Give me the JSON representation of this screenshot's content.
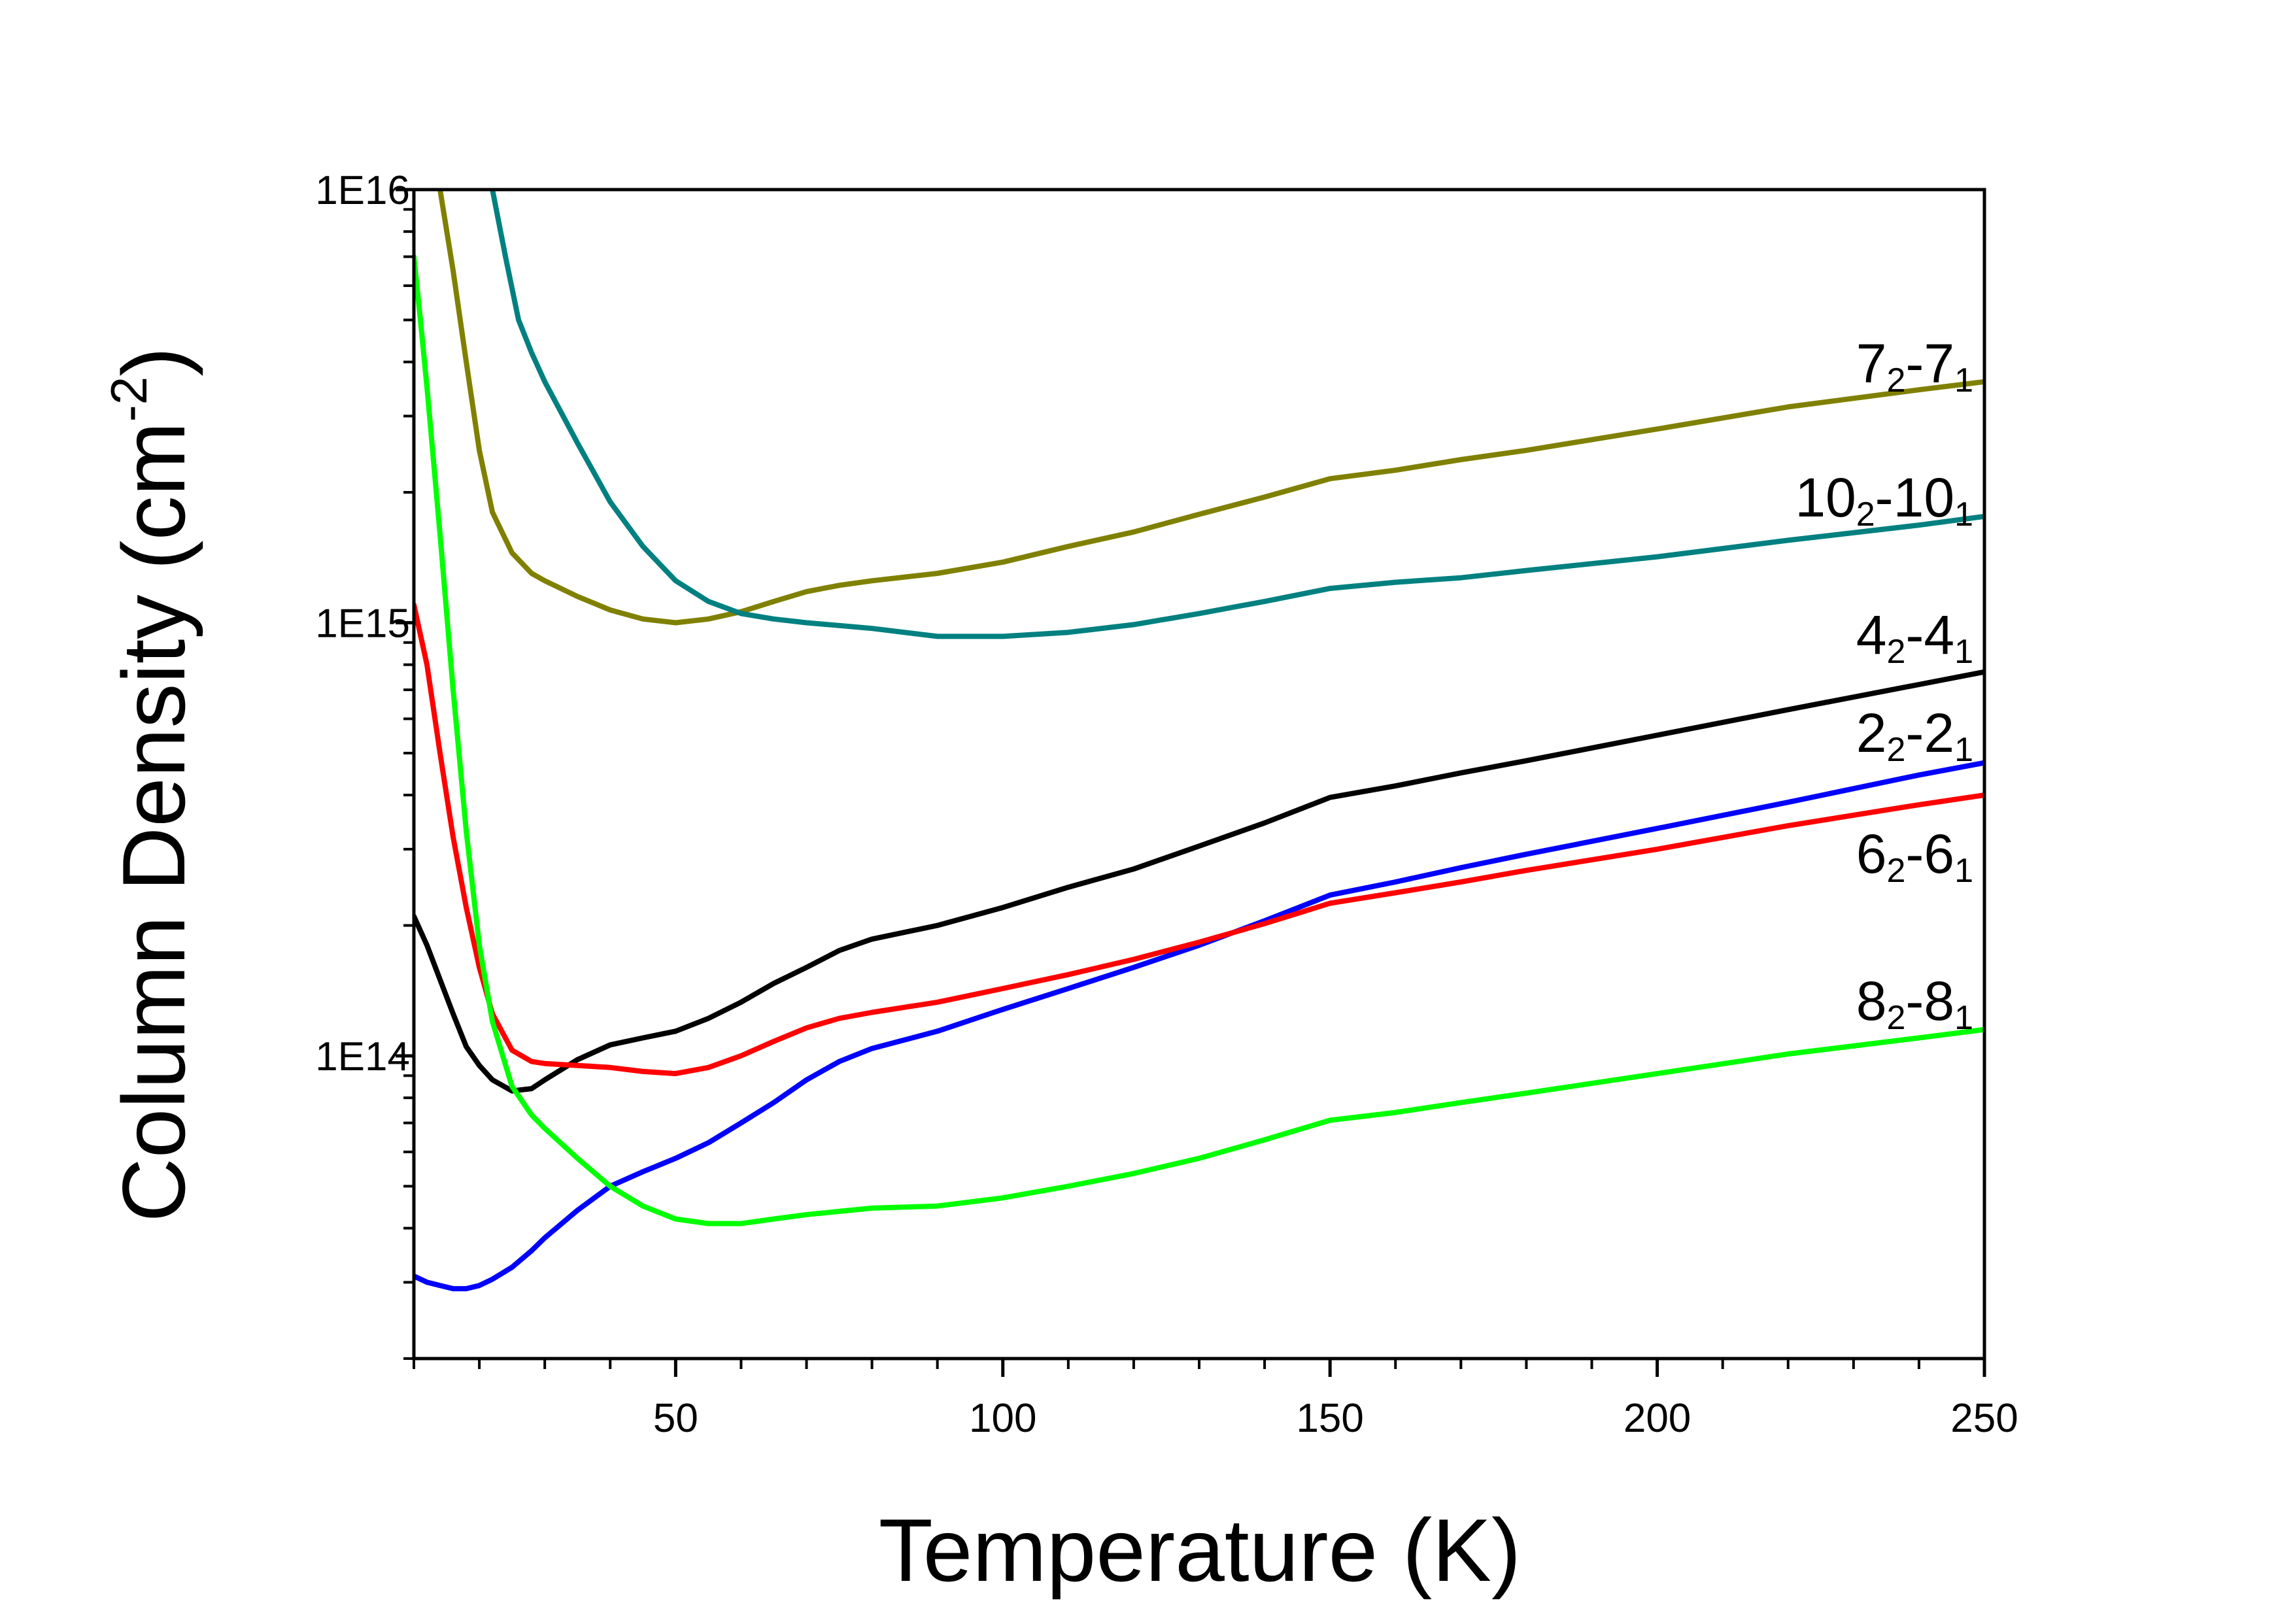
{
  "chart_data": {
    "type": "line",
    "title": "",
    "xlabel": "Temperature (K)",
    "ylabel": "Column Density (cm",
    "ylabel_sup": "-2",
    "ylabel_end": ")",
    "xlim": [
      10,
      250
    ],
    "ylim": [
      20000000000000.0,
      1e+16
    ],
    "yscale": "log",
    "x_ticks": [
      50,
      100,
      150,
      200,
      250
    ],
    "x_tick_labels": [
      "50",
      "100",
      "150",
      "200",
      "250"
    ],
    "y_ticks": [
      100000000000000.0,
      1000000000000000.0,
      1e+16
    ],
    "y_tick_labels": [
      "1E14",
      "1E15",
      "1E16"
    ],
    "grid": false,
    "legend": "inline-right",
    "series": [
      {
        "name": "7_2-7_1",
        "label_main": "7",
        "label_sub": "2",
        "label_mid": "-7",
        "label_sub2": "1",
        "color": "#808000",
        "x": [
          14,
          16,
          18,
          20,
          22,
          25,
          28,
          30,
          35,
          40,
          45,
          50,
          55,
          60,
          65,
          70,
          75,
          80,
          90,
          100,
          110,
          120,
          130,
          140,
          150,
          160,
          170,
          180,
          200,
          220,
          240,
          250
        ],
        "y": [
          1e+16,
          6500000000000000.0,
          4000000000000000.0,
          2500000000000000.0,
          1800000000000000.0,
          1450000000000000.0,
          1300000000000000.0,
          1250000000000000.0,
          1150000000000000.0,
          1070000000000000.0,
          1020000000000000.0,
          1000000000000000.0,
          1020000000000000.0,
          1060000000000000.0,
          1120000000000000.0,
          1180000000000000.0,
          1220000000000000.0,
          1250000000000000.0,
          1300000000000000.0,
          1380000000000000.0,
          1500000000000000.0,
          1620000000000000.0,
          1780000000000000.0,
          1950000000000000.0,
          2150000000000000.0,
          2250000000000000.0,
          2380000000000000.0,
          2500000000000000.0,
          2800000000000000.0,
          3150000000000000.0,
          3450000000000000.0,
          3600000000000000.0
        ]
      },
      {
        "name": "10_2-10_1",
        "label_main": "10",
        "label_sub": "2",
        "label_mid": "-10",
        "label_sub2": "1",
        "color": "#008080",
        "x": [
          22,
          24,
          26,
          28,
          30,
          35,
          40,
          45,
          50,
          55,
          60,
          65,
          70,
          80,
          90,
          100,
          110,
          120,
          130,
          140,
          150,
          160,
          170,
          180,
          200,
          220,
          240,
          250
        ],
        "y": [
          1e+16,
          7000000000000000.0,
          5000000000000000.0,
          4200000000000000.0,
          3600000000000000.0,
          2600000000000000.0,
          1900000000000000.0,
          1500000000000000.0,
          1250000000000000.0,
          1120000000000000.0,
          1050000000000000.0,
          1020000000000000.0,
          1000000000000000.0,
          970000000000000.0,
          930000000000000.0,
          930000000000000.0,
          950000000000000.0,
          990000000000000.0,
          1050000000000000.0,
          1120000000000000.0,
          1200000000000000.0,
          1240000000000000.0,
          1270000000000000.0,
          1320000000000000.0,
          1420000000000000.0,
          1550000000000000.0,
          1680000000000000.0,
          1760000000000000.0
        ]
      },
      {
        "name": "4_2-4_1",
        "label_main": "4",
        "label_sub": "2",
        "label_mid": "-4",
        "label_sub2": "1",
        "color": "#000000",
        "x": [
          10,
          12,
          14,
          16,
          18,
          20,
          22,
          25,
          28,
          30,
          35,
          40,
          45,
          50,
          55,
          60,
          65,
          70,
          75,
          80,
          90,
          100,
          110,
          120,
          130,
          140,
          150,
          160,
          170,
          180,
          200,
          220,
          240,
          250
        ],
        "y": [
          210000000000000.0,
          180000000000000.0,
          150000000000000.0,
          125000000000000.0,
          105000000000000.0,
          95000000000000.0,
          88000000000000.0,
          83000000000000.0,
          84000000000000.0,
          88000000000000.0,
          98000000000000.0,
          106000000000000.0,
          110000000000000.0,
          114000000000000.0,
          122000000000000.0,
          133000000000000.0,
          147000000000000.0,
          160000000000000.0,
          175000000000000.0,
          186000000000000.0,
          200000000000000.0,
          220000000000000.0,
          245000000000000.0,
          270000000000000.0,
          305000000000000.0,
          345000000000000.0,
          395000000000000.0,
          420000000000000.0,
          450000000000000.0,
          480000000000000.0,
          550000000000000.0,
          630000000000000.0,
          720000000000000.0,
          770000000000000.0
        ]
      },
      {
        "name": "2_2-2_1",
        "label_main": "2",
        "label_sub": "2",
        "label_mid": "-2",
        "label_sub2": "1",
        "color": "#0000ff",
        "x": [
          10,
          12,
          14,
          16,
          18,
          20,
          22,
          25,
          28,
          30,
          35,
          40,
          45,
          50,
          55,
          60,
          65,
          70,
          75,
          80,
          90,
          100,
          110,
          120,
          130,
          140,
          150,
          160,
          170,
          180,
          200,
          220,
          240,
          250
        ],
        "y": [
          31000000000000.0,
          30000000000000.0,
          29500000000000.0,
          29000000000000.0,
          29000000000000.0,
          29500000000000.0,
          30500000000000.0,
          32500000000000.0,
          35500000000000.0,
          38000000000000.0,
          44000000000000.0,
          50000000000000.0,
          54000000000000.0,
          58000000000000.0,
          63000000000000.0,
          70000000000000.0,
          78000000000000.0,
          88000000000000.0,
          97000000000000.0,
          104000000000000.0,
          114000000000000.0,
          128000000000000.0,
          143000000000000.0,
          160000000000000.0,
          180000000000000.0,
          205000000000000.0,
          235000000000000.0,
          252000000000000.0,
          272000000000000.0,
          292000000000000.0,
          335000000000000.0,
          385000000000000.0,
          445000000000000.0,
          475000000000000.0
        ]
      },
      {
        "name": "6_2-6_1",
        "label_main": "6",
        "label_sub": "2",
        "label_mid": "-6",
        "label_sub2": "1",
        "color": "#ff0000",
        "x": [
          10,
          12,
          14,
          16,
          18,
          20,
          22,
          25,
          28,
          30,
          35,
          40,
          45,
          50,
          55,
          60,
          65,
          70,
          75,
          80,
          90,
          100,
          110,
          120,
          130,
          140,
          150,
          160,
          170,
          180,
          200,
          220,
          240,
          250
        ],
        "y": [
          1100000000000000.0,
          800000000000000.0,
          500000000000000.0,
          320000000000000.0,
          220000000000000.0,
          160000000000000.0,
          125000000000000.0,
          103000000000000.0,
          97000000000000.0,
          96000000000000.0,
          95000000000000.0,
          94000000000000.0,
          92000000000000.0,
          91000000000000.0,
          94000000000000.0,
          100000000000000.0,
          108000000000000.0,
          116000000000000.0,
          122000000000000.0,
          126000000000000.0,
          133000000000000.0,
          143000000000000.0,
          154000000000000.0,
          167000000000000.0,
          183000000000000.0,
          202000000000000.0,
          225000000000000.0,
          238000000000000.0,
          252000000000000.0,
          268000000000000.0,
          300000000000000.0,
          340000000000000.0,
          380000000000000.0,
          400000000000000.0
        ]
      },
      {
        "name": "8_2-8_1",
        "label_main": "8",
        "label_sub": "2",
        "label_mid": "-8",
        "label_sub2": "1",
        "color": "#00ff00",
        "x": [
          10,
          11,
          12,
          14,
          16,
          18,
          20,
          22,
          25,
          28,
          30,
          35,
          40,
          45,
          50,
          55,
          60,
          65,
          70,
          80,
          90,
          100,
          110,
          120,
          130,
          140,
          150,
          160,
          170,
          180,
          200,
          220,
          240,
          250
        ],
        "y": [
          7000000000000000.0,
          5000000000000000.0,
          3500000000000000.0,
          1600000000000000.0,
          700000000000000.0,
          330000000000000.0,
          180000000000000.0,
          120000000000000.0,
          85000000000000.0,
          73000000000000.0,
          68000000000000.0,
          58000000000000.0,
          50000000000000.0,
          45000000000000.0,
          42000000000000.0,
          41000000000000.0,
          41000000000000.0,
          42000000000000.0,
          43000000000000.0,
          44500000000000.0,
          45000000000000.0,
          47000000000000.0,
          50000000000000.0,
          53500000000000.0,
          58000000000000.0,
          64000000000000.0,
          71000000000000.0,
          74000000000000.0,
          78000000000000.0,
          82000000000000.0,
          91000000000000.0,
          101000000000000.0,
          110000000000000.0,
          115000000000000.0
        ]
      }
    ]
  }
}
